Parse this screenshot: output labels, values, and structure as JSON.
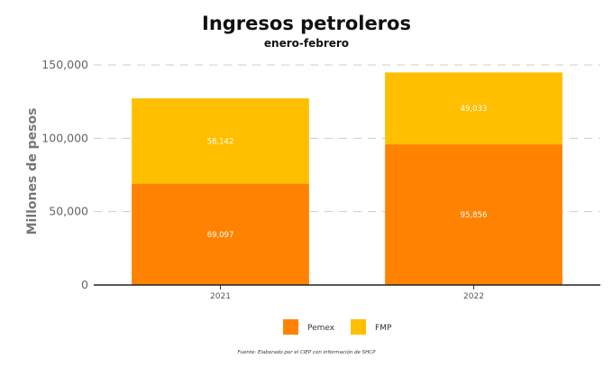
{
  "chart_data": {
    "type": "bar",
    "stacked": true,
    "title": "Ingresos petroleros",
    "subtitle": "enero-febrero",
    "xlabel": "",
    "ylabel": "Millones de pesos",
    "categories": [
      "2021",
      "2022"
    ],
    "series": [
      {
        "name": "Pemex",
        "values": [
          69097,
          95856
        ],
        "labels": [
          "69,097",
          "95,856"
        ],
        "color": "#ff8200"
      },
      {
        "name": "FMP",
        "values": [
          58142,
          49033
        ],
        "labels": [
          "58,142",
          "49,033"
        ],
        "color": "#ffbe00"
      }
    ],
    "ylim": [
      0,
      150000
    ],
    "yticks": [
      0,
      50000,
      100000,
      150000
    ],
    "ytick_labels": [
      "0",
      "50,000",
      "100,000",
      "150,000"
    ],
    "grid": true,
    "legend_position": "bottom",
    "source": "Fuente: Elaborado por el CIEP con información de SHCP"
  }
}
